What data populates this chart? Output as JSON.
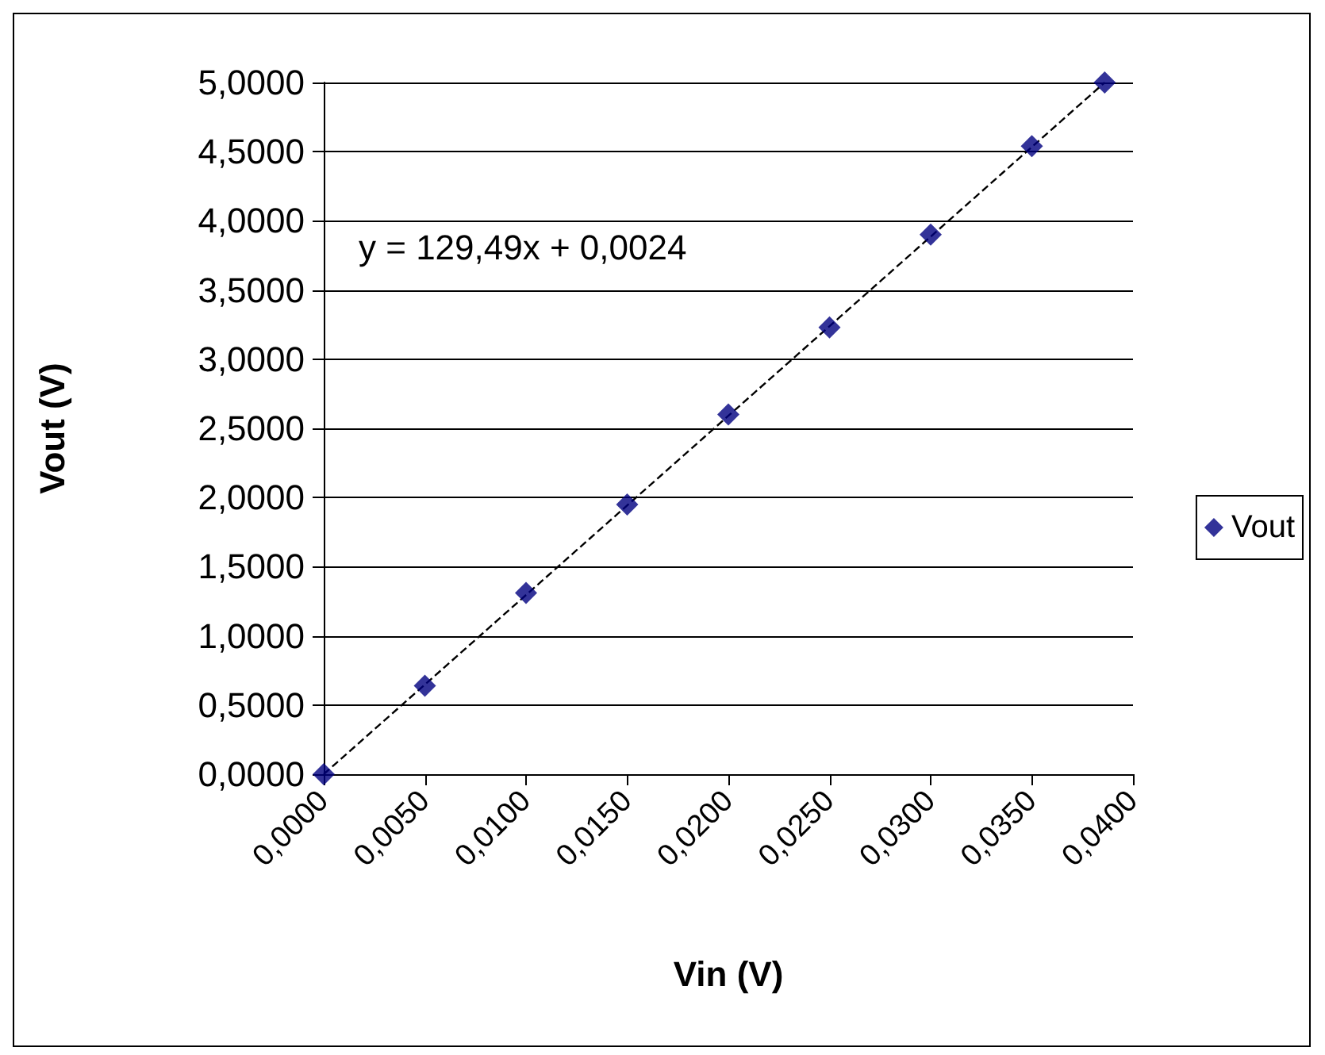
{
  "chart_data": {
    "type": "scatter",
    "xlabel": "Vin (V)",
    "ylabel": "Vout (V)",
    "annotations": [
      "y = 129,49x + 0,0024"
    ],
    "series": [
      {
        "name": "Vout",
        "color": "#000080",
        "marker": "diamond",
        "x": [
          0,
          0.005,
          0.01,
          0.015,
          0.02,
          0.025,
          0.03,
          0.035,
          0.0386
        ],
        "values": [
          0,
          0.64,
          1.31,
          1.95,
          2.6,
          3.23,
          3.9,
          4.54,
          5.0
        ]
      },
      {
        "type": "line",
        "color": "#000000",
        "line_style": "dashed",
        "marker": "none",
        "x": [
          0,
          0.0386
        ],
        "values": [
          0,
          5.0
        ]
      }
    ],
    "xlim": [
      0,
      0.04
    ],
    "xticks": [
      {
        "value": 0,
        "label": "0,0000"
      },
      {
        "value": 0.005,
        "label": "0,0050"
      },
      {
        "value": 0.01,
        "label": "0,0100"
      },
      {
        "value": 0.015,
        "label": "0,0150"
      },
      {
        "value": 0.02,
        "label": "0,0200"
      },
      {
        "value": 0.025,
        "label": "0,0250"
      },
      {
        "value": 0.03,
        "label": "0,0300"
      },
      {
        "value": 0.035,
        "label": "0,0350"
      },
      {
        "value": 0.04,
        "label": "0,0400"
      }
    ],
    "ylim": [
      0,
      5
    ],
    "yticks": [
      {
        "value": 0,
        "label": "0,0000"
      },
      {
        "value": 0.5,
        "label": "0,5000"
      },
      {
        "value": 1,
        "label": "1,0000"
      },
      {
        "value": 1.5,
        "label": "1,5000"
      },
      {
        "value": 2,
        "label": "2,0000"
      },
      {
        "value": 2.5,
        "label": "2,5000"
      },
      {
        "value": 3,
        "label": "3,0000"
      },
      {
        "value": 3.5,
        "label": "3,5000"
      },
      {
        "value": 4,
        "label": "4,0000"
      },
      {
        "value": 4.5,
        "label": "4,5000"
      },
      {
        "value": 5,
        "label": "5,0000"
      }
    ],
    "grid": "y",
    "legend": "right"
  }
}
